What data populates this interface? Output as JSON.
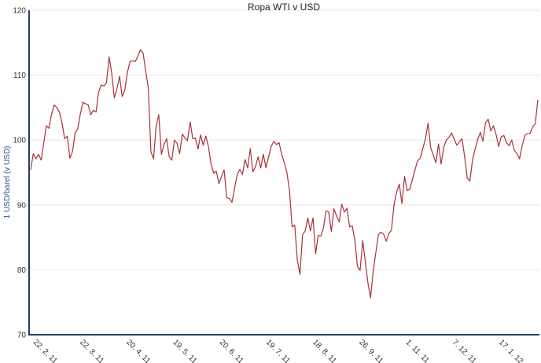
{
  "chart_data": {
    "type": "line",
    "title": "Ropa WTI v USD",
    "xlabel": "",
    "ylabel": "1 USD/barel (v USD)",
    "ylim": [
      70,
      120
    ],
    "yticks": [
      70,
      80,
      90,
      100,
      110,
      120
    ],
    "xticks": [
      "22. 2. 11",
      "22. 3. 11",
      "20. 4. 11",
      "19. 5. 11",
      "20. 6. 11",
      "19. 7. 11",
      "18. 8. 11",
      "26. 9. 11",
      "1. 11. 11",
      "7. 12. 11",
      "17. 1. 12"
    ],
    "grid": true,
    "legend": "none",
    "colors": {
      "series": "#a8313a",
      "axis": "#1f3f6a",
      "grid": "#e6e6e6"
    },
    "series": [
      {
        "values": [
          95.4,
          97.9,
          97.1,
          97.8,
          96.9,
          99.5,
          102.2,
          101.8,
          104.0,
          105.4,
          105.0,
          104.3,
          102.6,
          100.2,
          100.6,
          97.2,
          98.2,
          101.1,
          101.7,
          104.0,
          105.8,
          105.6,
          105.4,
          103.9,
          104.6,
          104.3,
          107.4,
          108.5,
          108.3,
          108.8,
          112.8,
          110.3,
          106.5,
          107.9,
          109.8,
          106.7,
          107.7,
          110.4,
          112.1,
          112.2,
          112.1,
          112.9,
          113.9,
          113.4,
          110.6,
          108.0,
          98.2,
          97.1,
          102.2,
          103.9,
          97.8,
          99.3,
          100.2,
          97.4,
          96.9,
          100.0,
          99.5,
          97.9,
          100.9,
          100.3,
          99.9,
          102.8,
          100.2,
          100.3,
          98.6,
          100.8,
          99.2,
          100.6,
          99.0,
          96.3,
          94.9,
          95.2,
          93.3,
          94.4,
          95.4,
          91.1,
          91.0,
          90.4,
          92.6,
          94.7,
          95.5,
          94.7,
          97.0,
          95.7,
          98.7,
          95.1,
          95.9,
          97.4,
          95.7,
          97.8,
          95.7,
          97.4,
          99.0,
          99.8,
          99.3,
          99.6,
          97.8,
          96.5,
          95.0,
          92.2,
          86.6,
          86.9,
          81.5,
          79.3,
          85.4,
          86.0,
          88.0,
          86.0,
          88.0,
          82.5,
          85.3,
          85.2,
          86.5,
          89.1,
          88.9,
          85.9,
          89.4,
          88.3,
          87.4,
          90.1,
          88.9,
          89.5,
          86.6,
          86.8,
          84.5,
          80.5,
          79.9,
          84.5,
          81.3,
          78.0,
          75.7,
          79.7,
          82.6,
          85.4,
          85.8,
          85.5,
          84.4,
          85.6,
          86.1,
          90.1,
          92.0,
          93.2,
          90.2,
          94.4,
          92.2,
          92.4,
          93.9,
          95.4,
          96.8,
          97.2,
          98.7,
          100.2,
          102.6,
          98.8,
          97.7,
          96.5,
          99.4,
          96.3,
          98.9,
          100.0,
          100.4,
          101.1,
          100.1,
          99.2,
          99.7,
          100.2,
          97.4,
          94.1,
          93.7,
          96.9,
          98.6,
          100.1,
          101.2,
          99.8,
          102.7,
          103.2,
          101.4,
          102.2,
          100.9,
          99.0,
          100.5,
          100.7,
          99.6,
          99.1,
          100.0,
          98.4,
          97.9,
          97.1,
          99.1,
          100.7,
          101.0,
          101.0,
          102.0,
          102.5,
          106.2
        ]
      }
    ]
  }
}
